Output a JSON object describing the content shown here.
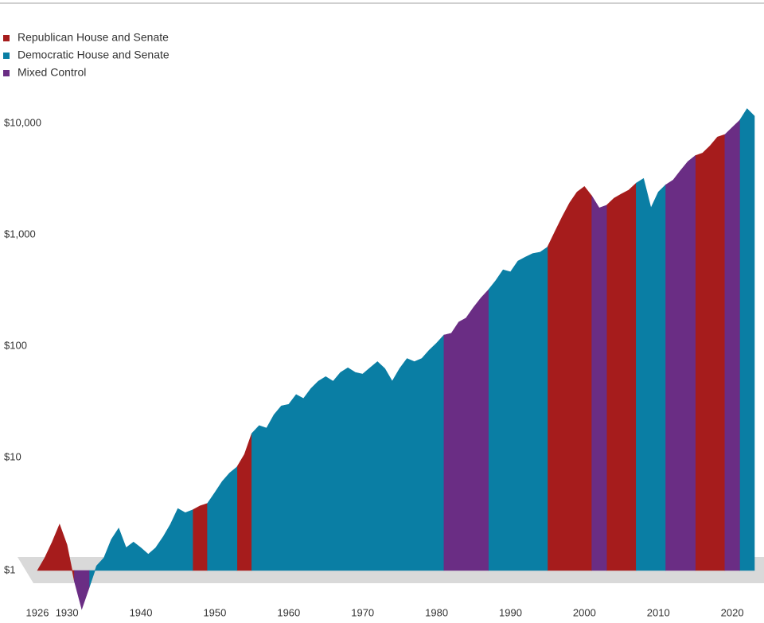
{
  "chart_data": {
    "type": "area",
    "log_scale": true,
    "x": [
      1926,
      1927,
      1928,
      1929,
      1930,
      1931,
      1932,
      1933,
      1934,
      1935,
      1936,
      1937,
      1938,
      1939,
      1940,
      1941,
      1942,
      1943,
      1944,
      1945,
      1946,
      1947,
      1948,
      1949,
      1950,
      1951,
      1952,
      1953,
      1954,
      1955,
      1956,
      1957,
      1958,
      1959,
      1960,
      1961,
      1962,
      1963,
      1964,
      1965,
      1966,
      1967,
      1968,
      1969,
      1970,
      1971,
      1972,
      1973,
      1974,
      1975,
      1976,
      1977,
      1978,
      1979,
      1980,
      1981,
      1982,
      1983,
      1984,
      1985,
      1986,
      1987,
      1988,
      1989,
      1990,
      1991,
      1992,
      1993,
      1994,
      1995,
      1996,
      1997,
      1998,
      1999,
      2000,
      2001,
      2002,
      2003,
      2004,
      2005,
      2006,
      2007,
      2008,
      2009,
      2010,
      2011,
      2012,
      2013,
      2014,
      2015,
      2016,
      2017,
      2018,
      2019,
      2020,
      2021,
      2022,
      2023
    ],
    "series": [
      {
        "name": "Republican House and Senate",
        "color": "#a61c1c",
        "values": [
          1.0,
          1.3,
          1.8,
          2.6,
          1.7,
          0.8,
          null,
          null,
          null,
          null,
          null,
          null,
          null,
          null,
          null,
          null,
          null,
          null,
          null,
          null,
          null,
          3.5,
          3.8,
          4.0,
          null,
          null,
          null,
          8.5,
          11,
          17,
          null,
          null,
          null,
          null,
          null,
          null,
          null,
          null,
          null,
          null,
          null,
          null,
          null,
          null,
          null,
          null,
          null,
          null,
          null,
          null,
          null,
          null,
          null,
          null,
          null,
          null,
          null,
          null,
          null,
          null,
          null,
          null,
          null,
          null,
          null,
          null,
          null,
          null,
          null,
          800,
          1100,
          1500,
          2000,
          2500,
          2800,
          2300,
          null,
          1900,
          2200,
          2400,
          2600,
          3000,
          null,
          null,
          null,
          null,
          null,
          null,
          null,
          5300,
          5600,
          6500,
          7800,
          8200,
          null,
          null,
          null,
          null
        ]
      },
      {
        "name": "Democratic House and Senate",
        "color": "#0a7ea4",
        "values": [
          null,
          null,
          null,
          null,
          null,
          null,
          null,
          0.7,
          1.1,
          1.3,
          1.9,
          2.4,
          1.6,
          1.8,
          1.6,
          1.4,
          1.6,
          2.0,
          2.6,
          3.6,
          3.3,
          3.5,
          null,
          4.0,
          5.0,
          6.3,
          7.5,
          8.5,
          null,
          17,
          20,
          19,
          25,
          30,
          31,
          38,
          35,
          43,
          50,
          55,
          50,
          60,
          66,
          60,
          58,
          66,
          75,
          65,
          50,
          65,
          80,
          75,
          80,
          95,
          110,
          130,
          null,
          null,
          null,
          null,
          null,
          330,
          400,
          500,
          480,
          600,
          650,
          700,
          720,
          800,
          null,
          null,
          null,
          null,
          null,
          null,
          null,
          null,
          null,
          null,
          null,
          3000,
          3300,
          1800,
          2500,
          2900,
          null,
          null,
          null,
          null,
          null,
          null,
          null,
          null,
          null,
          11000,
          14000,
          12000
        ]
      },
      {
        "name": "Mixed Control",
        "color": "#6a2d84",
        "values": [
          null,
          null,
          null,
          null,
          null,
          0.8,
          0.45,
          0.7,
          null,
          null,
          null,
          null,
          null,
          null,
          null,
          null,
          null,
          null,
          null,
          null,
          null,
          null,
          null,
          null,
          null,
          null,
          null,
          null,
          null,
          null,
          null,
          null,
          null,
          null,
          null,
          null,
          null,
          null,
          null,
          null,
          null,
          null,
          null,
          null,
          null,
          null,
          null,
          null,
          null,
          null,
          null,
          null,
          null,
          null,
          null,
          130,
          135,
          170,
          185,
          230,
          280,
          330,
          null,
          null,
          null,
          null,
          null,
          null,
          null,
          null,
          null,
          null,
          null,
          null,
          null,
          2300,
          1800,
          1900,
          null,
          null,
          null,
          null,
          null,
          null,
          null,
          2900,
          3200,
          3900,
          4700,
          5300,
          null,
          null,
          null,
          8200,
          9500,
          11000,
          null,
          null
        ]
      }
    ],
    "xlim": [
      1926,
      2023
    ],
    "xticks": [
      1926,
      1930,
      1940,
      1950,
      1960,
      1970,
      1980,
      1990,
      2000,
      2010,
      2020
    ],
    "ylim": [
      1,
      100000
    ],
    "yticks": [
      {
        "value": 1,
        "label": "$1"
      },
      {
        "value": 10,
        "label": "$10"
      },
      {
        "value": 100,
        "label": "$100"
      },
      {
        "value": 1000,
        "label": "$1,000"
      },
      {
        "value": 10000,
        "label": "$10,000"
      }
    ],
    "legend": "top-left"
  }
}
